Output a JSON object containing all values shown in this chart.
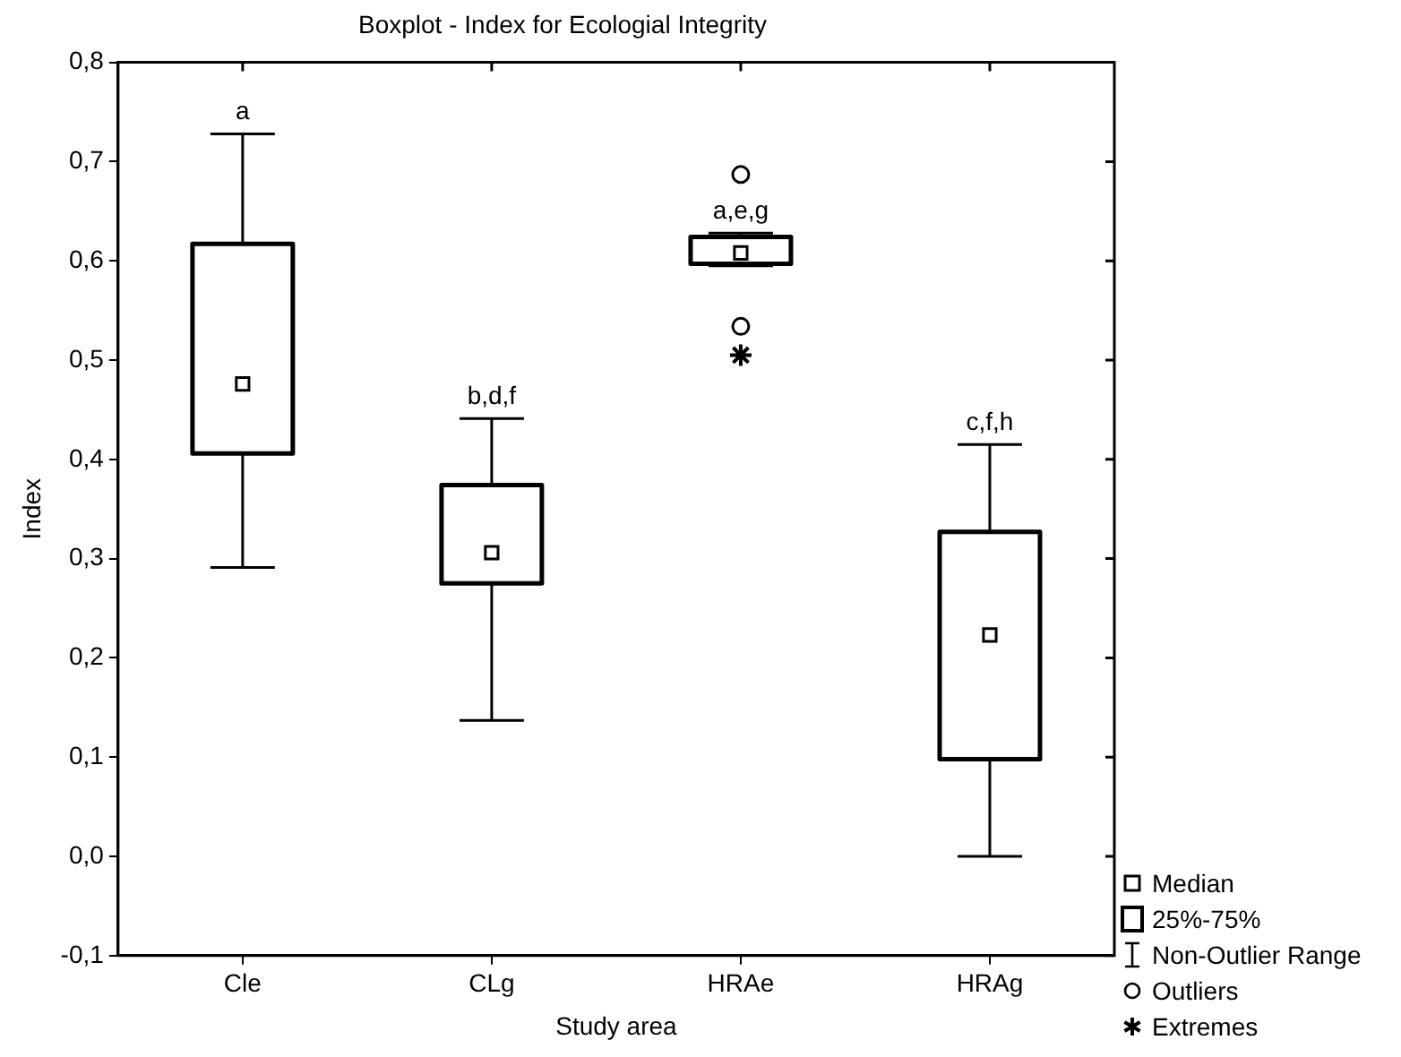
{
  "chart_data": {
    "type": "box",
    "title": "Boxplot - Index for Ecologial Integrity",
    "xlabel": "Study area",
    "ylabel": "Index",
    "categories": [
      "Cle",
      "CLg",
      "HRAe",
      "HRAg"
    ],
    "boxes": [
      {
        "low": 0.291,
        "q1": 0.406,
        "median": 0.476,
        "q3": 0.617,
        "high": 0.728
      },
      {
        "low": 0.137,
        "q1": 0.275,
        "median": 0.306,
        "q3": 0.374,
        "high": 0.441
      },
      {
        "low": 0.595,
        "q1": 0.597,
        "median": 0.608,
        "q3": 0.624,
        "high": 0.628,
        "outliers": [
          0.687,
          0.534
        ]
      },
      {
        "low": 0.0,
        "q1": 0.098,
        "median": 0.223,
        "q3": 0.327,
        "high": 0.415
      }
    ],
    "series": [
      {
        "type": "scatter",
        "marker": "cross",
        "color": "#000000",
        "x": [
          "HRAe"
        ],
        "values": [
          0.505
        ]
      }
    ],
    "ylim": [
      -0.1,
      0.8
    ],
    "yticks": [
      {
        "value": -0.1,
        "label": "-0,1"
      },
      {
        "value": 0.0,
        "label": "0,0"
      },
      {
        "value": 0.1,
        "label": "0,1"
      },
      {
        "value": 0.2,
        "label": "0,2"
      },
      {
        "value": 0.3,
        "label": "0,3"
      },
      {
        "value": 0.4,
        "label": "0,4"
      },
      {
        "value": 0.5,
        "label": "0,5"
      },
      {
        "value": 0.6,
        "label": "0,6"
      },
      {
        "value": 0.7,
        "label": "0,7"
      },
      {
        "value": 0.8,
        "label": "0,8"
      }
    ],
    "grid": false,
    "annotations": [
      {
        "text": "a",
        "x": "Cle",
        "y": 0.728
      },
      {
        "text": "b,d,f",
        "x": "CLg",
        "y": 0.441
      },
      {
        "text": "a,e,g",
        "x": "HRAe",
        "y": 0.628
      },
      {
        "text": "c,f,h",
        "x": "HRAg",
        "y": 0.415
      },
      "Median",
      "25%-75%",
      "Non-Outlier Range",
      "Outliers",
      "Extremes"
    ]
  }
}
